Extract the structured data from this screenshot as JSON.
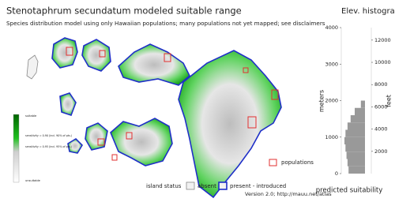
{
  "map": {
    "title": "Stenotaphrum secundatum modeled suitable range",
    "subtitle": "Species distribution model using only Hawaiian populations; many populations not yet mapped; see disclaimers",
    "colorbar_top": "suitable",
    "colorbar_bottom": "unsuitable",
    "colorbar_notes": [
      "sensitivity = 0.90 (incl. 90% of pts.)",
      "sensitivity = 0.95 (incl. 95% of pts.)"
    ],
    "populations_label": "populations",
    "island_status_label": "island status",
    "absent_label": "absent",
    "present_label": "present - introduced",
    "version": "Version 2.0; http://mauu.net/atlas"
  },
  "chart_data": {
    "type": "histogram",
    "title": "Elev. histogram",
    "x_label": "predicted suitability",
    "y_label": "meters",
    "y2_label": "feet",
    "color": "#999999",
    "ylim": [
      0,
      4000
    ],
    "yticks": [
      0,
      1000,
      2000,
      3000,
      4000
    ],
    "y2lim": [
      0,
      13123
    ],
    "y2ticks": [
      2000,
      4000,
      6000,
      8000,
      10000,
      12000
    ],
    "bins": [
      0,
      200,
      400,
      600,
      800,
      1000,
      1200,
      1400,
      1600,
      1800,
      2000
    ],
    "values": [
      0.8,
      0.85,
      0.9,
      0.95,
      1.0,
      0.95,
      0.85,
      0.7,
      0.5,
      0.2
    ]
  }
}
